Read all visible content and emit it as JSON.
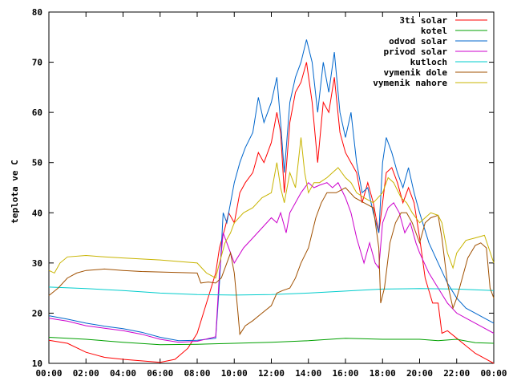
{
  "chart_data": {
    "type": "line",
    "title": "",
    "xlabel": "",
    "ylabel": "teplota ve C",
    "ylim": [
      10,
      80
    ],
    "xlim": [
      0,
      24
    ],
    "x_ticks": [
      "00:00",
      "02:00",
      "04:00",
      "06:00",
      "08:00",
      "10:00",
      "12:00",
      "14:00",
      "16:00",
      "18:00",
      "20:00",
      "22:00",
      "00:00"
    ],
    "y_ticks": [
      10,
      20,
      30,
      40,
      50,
      60,
      70,
      80
    ],
    "grid": false,
    "legend_position": "top-right",
    "series": [
      {
        "name": "3ti solar",
        "color": "#ff0000",
        "points": [
          [
            0,
            14.6
          ],
          [
            1,
            14
          ],
          [
            2,
            12.2
          ],
          [
            3,
            11.2
          ],
          [
            4,
            10.8
          ],
          [
            5,
            10.5
          ],
          [
            6,
            10.2
          ],
          [
            6.8,
            10.8
          ],
          [
            7.5,
            13
          ],
          [
            8,
            16
          ],
          [
            8.5,
            22
          ],
          [
            9,
            28
          ],
          [
            9.2,
            33
          ],
          [
            9.5,
            37
          ],
          [
            9.7,
            40
          ],
          [
            10,
            38
          ],
          [
            10.3,
            44
          ],
          [
            10.6,
            46
          ],
          [
            11,
            48
          ],
          [
            11.3,
            52
          ],
          [
            11.6,
            50
          ],
          [
            12,
            54
          ],
          [
            12.3,
            60
          ],
          [
            12.5,
            56
          ],
          [
            12.7,
            44
          ],
          [
            13,
            58
          ],
          [
            13.3,
            64
          ],
          [
            13.6,
            66
          ],
          [
            13.9,
            70
          ],
          [
            14.2,
            62
          ],
          [
            14.5,
            50
          ],
          [
            14.8,
            62
          ],
          [
            15.1,
            60
          ],
          [
            15.4,
            67
          ],
          [
            15.7,
            56
          ],
          [
            16,
            52
          ],
          [
            16.3,
            50
          ],
          [
            16.6,
            48
          ],
          [
            16.9,
            42
          ],
          [
            17.2,
            46
          ],
          [
            17.5,
            42
          ],
          [
            17.8,
            36
          ],
          [
            18,
            42
          ],
          [
            18.2,
            48
          ],
          [
            18.5,
            49
          ],
          [
            18.8,
            46
          ],
          [
            19.1,
            42
          ],
          [
            19.4,
            45
          ],
          [
            19.7,
            42
          ],
          [
            20,
            35
          ],
          [
            20.3,
            27
          ],
          [
            20.7,
            22
          ],
          [
            21,
            22
          ],
          [
            21.2,
            16
          ],
          [
            21.5,
            16.5
          ],
          [
            22,
            15
          ],
          [
            22.5,
            13.5
          ],
          [
            23,
            12
          ],
          [
            23.5,
            11
          ],
          [
            24,
            10
          ]
        ]
      },
      {
        "name": "kotel",
        "color": "#00a000",
        "points": [
          [
            0,
            15.2
          ],
          [
            2,
            14.8
          ],
          [
            4,
            14.2
          ],
          [
            6,
            13.7
          ],
          [
            8,
            13.8
          ],
          [
            10,
            14
          ],
          [
            12,
            14.2
          ],
          [
            14,
            14.5
          ],
          [
            16,
            15
          ],
          [
            18,
            14.8
          ],
          [
            20,
            14.8
          ],
          [
            21,
            14.5
          ],
          [
            22,
            14.8
          ],
          [
            23,
            14.1
          ],
          [
            24,
            14
          ]
        ]
      },
      {
        "name": "odvod solar",
        "color": "#0066cc",
        "points": [
          [
            0,
            19.5
          ],
          [
            1,
            18.8
          ],
          [
            2,
            18
          ],
          [
            3,
            17.4
          ],
          [
            4,
            16.9
          ],
          [
            5,
            16.2
          ],
          [
            6,
            15.2
          ],
          [
            7,
            14.5
          ],
          [
            8,
            14.6
          ],
          [
            9,
            15
          ],
          [
            9.2,
            26
          ],
          [
            9.4,
            40
          ],
          [
            9.6,
            38
          ],
          [
            10,
            46
          ],
          [
            10.3,
            50
          ],
          [
            10.6,
            53
          ],
          [
            11,
            56
          ],
          [
            11.3,
            63
          ],
          [
            11.6,
            58
          ],
          [
            12,
            62
          ],
          [
            12.3,
            67
          ],
          [
            12.5,
            58
          ],
          [
            12.7,
            48
          ],
          [
            13,
            62
          ],
          [
            13.3,
            67
          ],
          [
            13.6,
            70
          ],
          [
            13.9,
            74.5
          ],
          [
            14.2,
            70
          ],
          [
            14.5,
            60
          ],
          [
            14.8,
            70
          ],
          [
            15.1,
            64
          ],
          [
            15.4,
            72
          ],
          [
            15.7,
            60
          ],
          [
            16,
            55
          ],
          [
            16.3,
            60
          ],
          [
            16.6,
            50
          ],
          [
            16.9,
            44
          ],
          [
            17.2,
            45
          ],
          [
            17.5,
            40
          ],
          [
            17.8,
            36
          ],
          [
            18,
            50
          ],
          [
            18.2,
            55
          ],
          [
            18.5,
            52
          ],
          [
            18.8,
            48
          ],
          [
            19.1,
            45
          ],
          [
            19.4,
            49
          ],
          [
            19.7,
            44
          ],
          [
            20,
            40
          ],
          [
            20.5,
            34
          ],
          [
            21,
            30
          ],
          [
            21.5,
            26
          ],
          [
            22,
            23
          ],
          [
            22.5,
            21
          ],
          [
            23,
            20
          ],
          [
            23.5,
            19
          ],
          [
            24,
            18
          ]
        ]
      },
      {
        "name": "privod solar",
        "color": "#cc00cc",
        "points": [
          [
            0,
            19
          ],
          [
            1,
            18.4
          ],
          [
            2,
            17.5
          ],
          [
            3,
            17
          ],
          [
            4,
            16.5
          ],
          [
            5,
            15.8
          ],
          [
            6,
            14.8
          ],
          [
            7,
            14.2
          ],
          [
            8,
            14.4
          ],
          [
            9,
            15.3
          ],
          [
            9.2,
            28
          ],
          [
            9.4,
            36
          ],
          [
            9.7,
            33
          ],
          [
            10,
            30
          ],
          [
            10.5,
            33
          ],
          [
            11,
            35
          ],
          [
            11.5,
            37
          ],
          [
            12,
            39
          ],
          [
            12.3,
            38
          ],
          [
            12.5,
            40
          ],
          [
            12.8,
            36
          ],
          [
            13,
            40
          ],
          [
            13.3,
            42
          ],
          [
            13.6,
            44
          ],
          [
            14,
            46
          ],
          [
            14.3,
            45
          ],
          [
            14.6,
            45.5
          ],
          [
            15,
            46
          ],
          [
            15.3,
            45
          ],
          [
            15.6,
            46
          ],
          [
            16,
            43
          ],
          [
            16.3,
            40
          ],
          [
            16.6,
            35
          ],
          [
            17,
            30
          ],
          [
            17.3,
            34
          ],
          [
            17.6,
            30
          ],
          [
            17.8,
            29
          ],
          [
            18,
            38
          ],
          [
            18.3,
            41
          ],
          [
            18.6,
            42
          ],
          [
            18.9,
            40
          ],
          [
            19.2,
            36
          ],
          [
            19.5,
            38
          ],
          [
            19.8,
            34
          ],
          [
            20,
            32
          ],
          [
            20.5,
            28
          ],
          [
            21,
            25
          ],
          [
            21.5,
            22
          ],
          [
            22,
            20
          ],
          [
            22.5,
            19
          ],
          [
            23,
            18
          ],
          [
            23.5,
            17
          ],
          [
            24,
            16
          ]
        ]
      },
      {
        "name": "kutloch",
        "color": "#00cccc",
        "points": [
          [
            0,
            25.2
          ],
          [
            2,
            24.9
          ],
          [
            4,
            24.5
          ],
          [
            6,
            24
          ],
          [
            8,
            23.7
          ],
          [
            10,
            23.6
          ],
          [
            12,
            23.7
          ],
          [
            14,
            24
          ],
          [
            16,
            24.4
          ],
          [
            18,
            24.8
          ],
          [
            20,
            24.9
          ],
          [
            22,
            24.8
          ],
          [
            24,
            24.5
          ]
        ]
      },
      {
        "name": "vymenik dole",
        "color": "#a05000",
        "points": [
          [
            0,
            23.5
          ],
          [
            0.5,
            25
          ],
          [
            1,
            27
          ],
          [
            1.5,
            28
          ],
          [
            2,
            28.5
          ],
          [
            3,
            28.8
          ],
          [
            4,
            28.5
          ],
          [
            5,
            28.3
          ],
          [
            6,
            28.2
          ],
          [
            7,
            28.1
          ],
          [
            8,
            28
          ],
          [
            8.2,
            26
          ],
          [
            8.6,
            26.2
          ],
          [
            9,
            26
          ],
          [
            9.3,
            27
          ],
          [
            9.6,
            30
          ],
          [
            9.8,
            32
          ],
          [
            10,
            28
          ],
          [
            10.2,
            20
          ],
          [
            10.3,
            15.8
          ],
          [
            10.6,
            17.5
          ],
          [
            11,
            18.5
          ],
          [
            11.5,
            20
          ],
          [
            12,
            21.5
          ],
          [
            12.3,
            24
          ],
          [
            12.6,
            24.5
          ],
          [
            13,
            25
          ],
          [
            13.3,
            27
          ],
          [
            13.6,
            30
          ],
          [
            14,
            33
          ],
          [
            14.2,
            36
          ],
          [
            14.4,
            39
          ],
          [
            14.7,
            42
          ],
          [
            15,
            44
          ],
          [
            15.5,
            44
          ],
          [
            16,
            45
          ],
          [
            16.5,
            43
          ],
          [
            17,
            42
          ],
          [
            17.5,
            41
          ],
          [
            17.8,
            33
          ],
          [
            17.9,
            22
          ],
          [
            18.1,
            25
          ],
          [
            18.4,
            34
          ],
          [
            18.7,
            38
          ],
          [
            19,
            40
          ],
          [
            19.3,
            40
          ],
          [
            19.6,
            38
          ],
          [
            20,
            34
          ],
          [
            20.3,
            38
          ],
          [
            20.6,
            39
          ],
          [
            21,
            39.5
          ],
          [
            21.2,
            35
          ],
          [
            21.5,
            26
          ],
          [
            21.8,
            21
          ],
          [
            22,
            23
          ],
          [
            22.3,
            27
          ],
          [
            22.6,
            31
          ],
          [
            23,
            33.5
          ],
          [
            23.3,
            34
          ],
          [
            23.6,
            33
          ],
          [
            23.8,
            25
          ],
          [
            24,
            23
          ]
        ]
      },
      {
        "name": "vymenik nahore",
        "color": "#c8b400",
        "points": [
          [
            0,
            28.5
          ],
          [
            0.3,
            28
          ],
          [
            0.6,
            30
          ],
          [
            1,
            31.2
          ],
          [
            2,
            31.5
          ],
          [
            3,
            31.2
          ],
          [
            4,
            31
          ],
          [
            5,
            30.8
          ],
          [
            6,
            30.6
          ],
          [
            7,
            30.3
          ],
          [
            8,
            30
          ],
          [
            8.5,
            28
          ],
          [
            9,
            27
          ],
          [
            9.2,
            30
          ],
          [
            9.5,
            34
          ],
          [
            9.8,
            36
          ],
          [
            10,
            38
          ],
          [
            10.5,
            40
          ],
          [
            11,
            41
          ],
          [
            11.5,
            43
          ],
          [
            12,
            44
          ],
          [
            12.3,
            50
          ],
          [
            12.5,
            45
          ],
          [
            12.7,
            42
          ],
          [
            13,
            48
          ],
          [
            13.3,
            45
          ],
          [
            13.6,
            55
          ],
          [
            13.8,
            48
          ],
          [
            14,
            44
          ],
          [
            14.3,
            46
          ],
          [
            14.6,
            46
          ],
          [
            15,
            47
          ],
          [
            15.3,
            48
          ],
          [
            15.6,
            49
          ],
          [
            16,
            47
          ],
          [
            16.3,
            46
          ],
          [
            16.6,
            44
          ],
          [
            17,
            43
          ],
          [
            17.5,
            42
          ],
          [
            18,
            44
          ],
          [
            18.3,
            47
          ],
          [
            18.6,
            46
          ],
          [
            19,
            43
          ],
          [
            19.3,
            42
          ],
          [
            19.6,
            40
          ],
          [
            20,
            38
          ],
          [
            20.3,
            39
          ],
          [
            20.6,
            40
          ],
          [
            21,
            39.5
          ],
          [
            21.2,
            38
          ],
          [
            21.5,
            32
          ],
          [
            21.8,
            29
          ],
          [
            22,
            32
          ],
          [
            22.5,
            34.5
          ],
          [
            23,
            35
          ],
          [
            23.5,
            35.5
          ],
          [
            24,
            30
          ]
        ]
      }
    ]
  }
}
